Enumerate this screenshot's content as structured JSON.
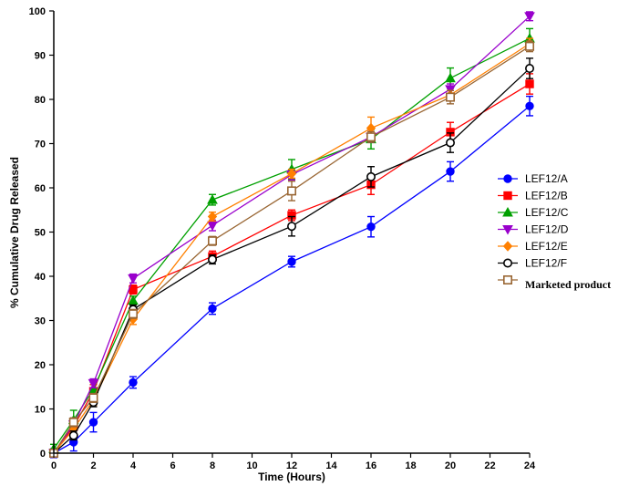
{
  "chart_data": {
    "type": "line",
    "title": "",
    "xlabel": "Time (Hours)",
    "ylabel": "% Cumulative Drug Released",
    "xlim": [
      0,
      24
    ],
    "ylim": [
      0,
      100
    ],
    "xticks": [
      0,
      2,
      4,
      6,
      8,
      10,
      12,
      14,
      16,
      18,
      20,
      22,
      24
    ],
    "yticks": [
      0,
      10,
      20,
      30,
      40,
      50,
      60,
      70,
      80,
      90,
      100
    ],
    "grid": false,
    "legend_position": "right",
    "x": [
      0,
      1,
      2,
      4,
      8,
      12,
      16,
      20,
      24
    ],
    "series": [
      {
        "name": "LEF12/A",
        "color": "#0000ff",
        "marker": "circle-filled",
        "values": [
          0,
          2.5,
          7,
          16,
          32.7,
          43.3,
          51.2,
          63.7,
          78.5
        ],
        "errors": [
          1,
          2,
          2.2,
          1.3,
          1.3,
          1.2,
          2.3,
          2.2,
          2.2
        ]
      },
      {
        "name": "LEF12/B",
        "color": "#ff0000",
        "marker": "square-filled",
        "values": [
          0,
          6,
          14,
          37,
          44.5,
          53.8,
          60.7,
          72.6,
          83.5
        ],
        "errors": [
          0.5,
          1.5,
          1.5,
          1,
          1.2,
          1.2,
          2.2,
          2.2,
          2.3
        ]
      },
      {
        "name": "LEF12/C",
        "color": "#00a000",
        "marker": "triangle-up",
        "values": [
          1,
          7.5,
          14.5,
          34.5,
          57.3,
          64.2,
          71,
          84.8,
          93.8
        ],
        "errors": [
          1,
          2.2,
          1.5,
          1,
          1.2,
          2.2,
          2.2,
          2.3,
          2.2
        ]
      },
      {
        "name": "LEF12/D",
        "color": "#9900cc",
        "marker": "triangle-down",
        "values": [
          0,
          6.5,
          15.8,
          39.5,
          51.5,
          63,
          71.5,
          82.3,
          98.8
        ],
        "errors": [
          0.5,
          1,
          1,
          1,
          1.2,
          1.2,
          1.2,
          1.2,
          1
        ]
      },
      {
        "name": "LEF12/E",
        "color": "#ff8000",
        "marker": "diamond-filled",
        "values": [
          0,
          5.5,
          12,
          30.3,
          53.5,
          63.2,
          73.5,
          81,
          92.6
        ],
        "errors": [
          0.5,
          1,
          1.2,
          1.2,
          1,
          1,
          2.5,
          1,
          1.2
        ]
      },
      {
        "name": "LEF12/F",
        "color": "#000000",
        "marker": "circle-open",
        "values": [
          0,
          4,
          11.5,
          32.5,
          43.8,
          51.3,
          62.5,
          70.2,
          87
        ],
        "errors": [
          0.5,
          1,
          1,
          1,
          1,
          2.2,
          2.3,
          2.2,
          2.3
        ]
      },
      {
        "name": "Marketed product",
        "color": "#996633",
        "marker": "square-open",
        "values": [
          0,
          7,
          12.5,
          31.5,
          48,
          59.3,
          71.5,
          80.5,
          92
        ],
        "errors": [
          0.5,
          1,
          1,
          1,
          1,
          2.2,
          1.2,
          1.5,
          1.2
        ]
      }
    ]
  }
}
